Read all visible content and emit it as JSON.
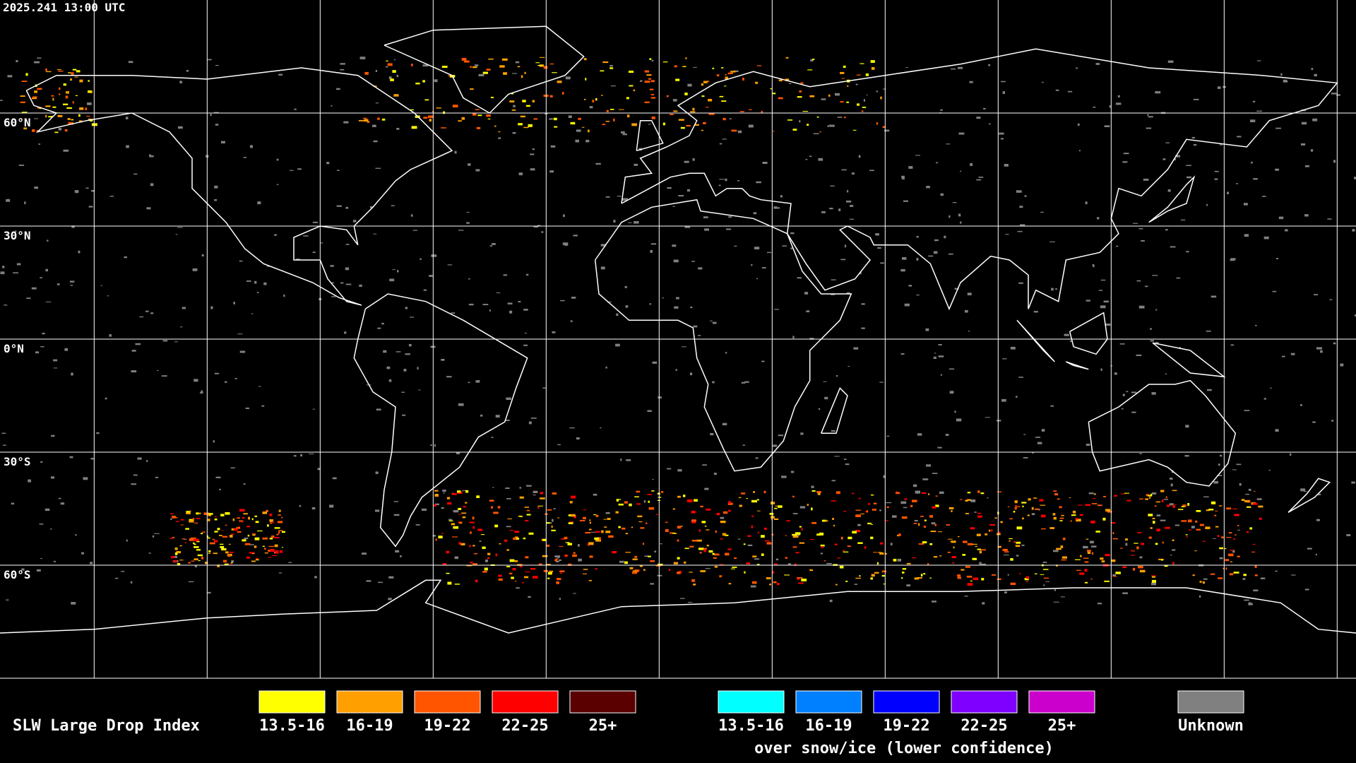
{
  "header": {
    "timestamp": "2025.241 13:00 UTC"
  },
  "map": {
    "latitude_labels": [
      "60°N",
      "30°N",
      "0°N",
      "30°S",
      "60°S"
    ]
  },
  "legend": {
    "title": "SLW Large Drop Index",
    "groups": [
      {
        "items": [
          {
            "label": "13.5-16",
            "color": "#ffff00"
          },
          {
            "label": "16-19",
            "color": "#ff9f00"
          },
          {
            "label": "19-22",
            "color": "#ff5500"
          },
          {
            "label": "22-25",
            "color": "#ff0000"
          },
          {
            "label": "25+",
            "color": "#5a0000"
          }
        ]
      },
      {
        "caption": "over snow/ice (lower confidence)",
        "items": [
          {
            "label": "13.5-16",
            "color": "#00ffff"
          },
          {
            "label": "16-19",
            "color": "#0080ff"
          },
          {
            "label": "19-22",
            "color": "#0000ff"
          },
          {
            "label": "22-25",
            "color": "#7f00ff"
          },
          {
            "label": "25+",
            "color": "#cc00cc"
          }
        ]
      }
    ],
    "unknown": {
      "label": "Unknown",
      "color": "#808080"
    }
  }
}
